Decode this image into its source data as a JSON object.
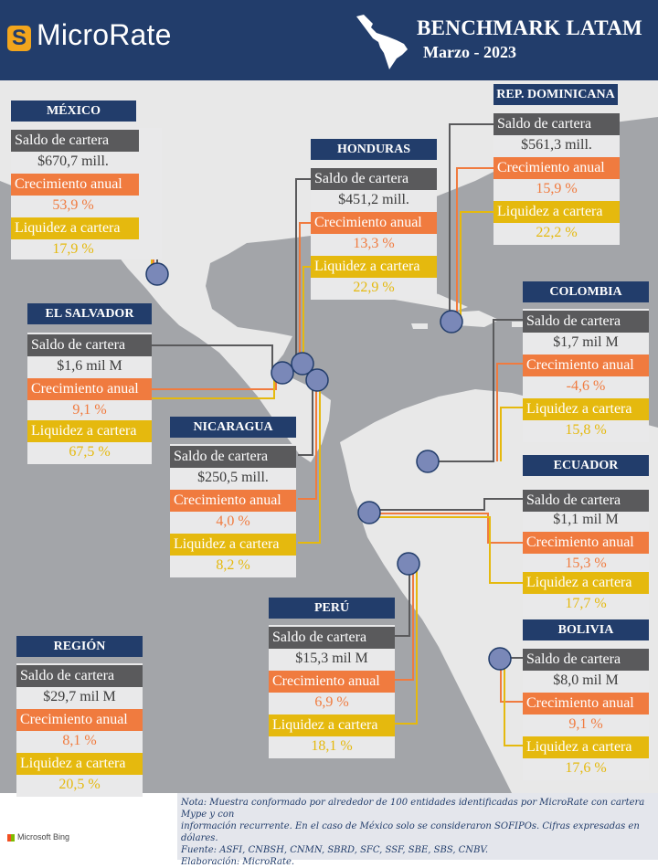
{
  "brand": {
    "logo_letter": "S",
    "name": "MicroRate"
  },
  "header": {
    "title": "BENCHMARK LATAM",
    "subtitle": "Marzo - 2023"
  },
  "labels": {
    "saldo": "Saldo de cartera",
    "crecimiento": "Crecimiento anual",
    "liquidez": "Liquidez a cartera"
  },
  "countries": {
    "mexico": {
      "name": "MÉXICO",
      "saldo": "$670,7 mill.",
      "crecimiento": "53,9 %",
      "liquidez": "17,9 %"
    },
    "honduras": {
      "name": "HONDURAS",
      "saldo": "$451,2 mill.",
      "crecimiento": "13,3 %",
      "liquidez": "22,9 %"
    },
    "rep_dominicana": {
      "name": "REP. DOMINICANA",
      "saldo": "$561,3 mill.",
      "crecimiento": "15,9 %",
      "liquidez": "22,2 %"
    },
    "el_salvador": {
      "name": "EL SALVADOR",
      "saldo": "$1,6 mil M",
      "crecimiento": "9,1 %",
      "liquidez": "67,5 %"
    },
    "colombia": {
      "name": "COLOMBIA",
      "saldo": "$1,7 mil M",
      "crecimiento": "-4,6 %",
      "liquidez": "15,8 %"
    },
    "nicaragua": {
      "name": "NICARAGUA",
      "saldo": "$250,5 mill.",
      "crecimiento": "4,0 %",
      "liquidez": "8,2 %"
    },
    "ecuador": {
      "name": "ECUADOR",
      "saldo": "$1,1 mil M",
      "crecimiento": "15,3 %",
      "liquidez": "17,7 %"
    },
    "peru": {
      "name": "PERÚ",
      "saldo": "$15,3 mil M",
      "crecimiento": "6,9 %",
      "liquidez": "18,1 %"
    },
    "bolivia": {
      "name": "BOLIVIA",
      "saldo": "$8,0 mil M",
      "crecimiento": "9,1 %",
      "liquidez": "17,6 %"
    },
    "region": {
      "name": "REGIÓN",
      "saldo": "$29,7 mil M",
      "crecimiento": "8,1 %",
      "liquidez": "20,5 %"
    }
  },
  "notes": {
    "line1": "Nota: Muestra conformado por alrededor de 100 entidades identificadas por MicroRate con cartera Mype y con",
    "line2": "información recurrente. En el caso de México solo se consideraron SOFIPOs. Cifras expresadas en dólares.",
    "line3": "Fuente: ASFI, CNBSH, CNMN, SBRD, SFC, SSF, SBE, SBS, CNBV.",
    "line4": "Elaboración: MicroRate."
  },
  "attribution": "Microsoft Bing",
  "colors": {
    "navy": "#223d6b",
    "orange": "#f07b3f",
    "yellow": "#e5b90e",
    "gray": "#5a5a5c",
    "map_sea": "#a3a5a9",
    "map_land": "#e8e8e8",
    "marker": "#7a88b8"
  }
}
